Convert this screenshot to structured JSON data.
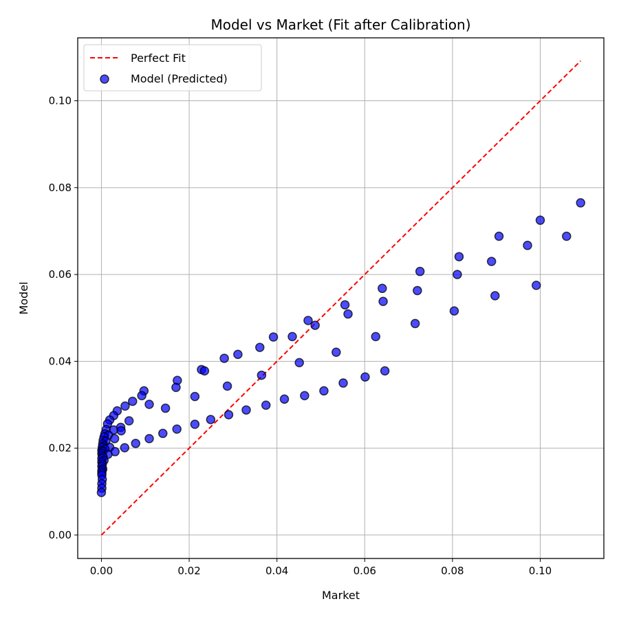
{
  "chart_data": {
    "type": "scatter",
    "title": "Model vs Market (Fit after Calibration)",
    "xlabel": "Market",
    "ylabel": "Model",
    "xlim": [
      -0.0054,
      0.1145
    ],
    "ylim": [
      -0.0054,
      0.1145
    ],
    "xticks": [
      "0.00",
      "0.02",
      "0.04",
      "0.06",
      "0.08",
      "0.10"
    ],
    "xtick_values": [
      0.0,
      0.02,
      0.04,
      0.06,
      0.08,
      0.1
    ],
    "yticks": [
      "0.00",
      "0.02",
      "0.04",
      "0.06",
      "0.08",
      "0.10"
    ],
    "ytick_values": [
      0.0,
      0.02,
      0.04,
      0.06,
      0.08,
      0.1
    ],
    "grid": true,
    "legend_position": "top-left",
    "series": [
      {
        "name": "Perfect Fit",
        "kind": "line",
        "style": "dashed",
        "color": "#ff0000",
        "x": [
          0.0,
          0.1092
        ],
        "y": [
          0.0,
          0.1092
        ]
      },
      {
        "name": "Model (Predicted)",
        "kind": "scatter",
        "color": "#0000ff",
        "edge_color": "#000000",
        "points": [
          [
            0.1092,
            0.0765
          ],
          [
            0.1,
            0.0725
          ],
          [
            0.0906,
            0.0688
          ],
          [
            0.0971,
            0.0667
          ],
          [
            0.106,
            0.0688
          ],
          [
            0.0815,
            0.0641
          ],
          [
            0.0726,
            0.0607
          ],
          [
            0.0889,
            0.063
          ],
          [
            0.0811,
            0.06
          ],
          [
            0.0991,
            0.0575
          ],
          [
            0.064,
            0.0568
          ],
          [
            0.072,
            0.0563
          ],
          [
            0.0897,
            0.0551
          ],
          [
            0.0642,
            0.0538
          ],
          [
            0.0555,
            0.053
          ],
          [
            0.0562,
            0.0509
          ],
          [
            0.0804,
            0.0516
          ],
          [
            0.0715,
            0.0487
          ],
          [
            0.0471,
            0.0494
          ],
          [
            0.0487,
            0.0483
          ],
          [
            0.0625,
            0.0457
          ],
          [
            0.0435,
            0.0457
          ],
          [
            0.0392,
            0.0456
          ],
          [
            0.0361,
            0.0432
          ],
          [
            0.0535,
            0.0421
          ],
          [
            0.0311,
            0.0416
          ],
          [
            0.028,
            0.0407
          ],
          [
            0.0451,
            0.0397
          ],
          [
            0.0228,
            0.0381
          ],
          [
            0.0235,
            0.0378
          ],
          [
            0.0646,
            0.0378
          ],
          [
            0.0365,
            0.0368
          ],
          [
            0.0601,
            0.0364
          ],
          [
            0.0173,
            0.0356
          ],
          [
            0.0551,
            0.035
          ],
          [
            0.0287,
            0.0343
          ],
          [
            0.017,
            0.034
          ],
          [
            0.0097,
            0.0332
          ],
          [
            0.0507,
            0.0332
          ],
          [
            0.0463,
            0.0321
          ],
          [
            0.0092,
            0.0321
          ],
          [
            0.0213,
            0.0319
          ],
          [
            0.0417,
            0.0313
          ],
          [
            0.0071,
            0.0308
          ],
          [
            0.0109,
            0.0301
          ],
          [
            0.0375,
            0.0299
          ],
          [
            0.0054,
            0.0297
          ],
          [
            0.0146,
            0.0292
          ],
          [
            0.033,
            0.0288
          ],
          [
            0.0036,
            0.0286
          ],
          [
            0.029,
            0.0277
          ],
          [
            0.0028,
            0.0275
          ],
          [
            0.0249,
            0.0266
          ],
          [
            0.0019,
            0.0265
          ],
          [
            0.0063,
            0.0263
          ],
          [
            0.0014,
            0.0256
          ],
          [
            0.0213,
            0.0255
          ],
          [
            0.0044,
            0.0248
          ],
          [
            0.0172,
            0.0244
          ],
          [
            0.0011,
            0.0243
          ],
          [
            0.0028,
            0.0242
          ],
          [
            0.0045,
            0.024
          ],
          [
            0.014,
            0.0234
          ],
          [
            0.0008,
            0.0233
          ],
          [
            0.0016,
            0.023
          ],
          [
            0.003,
            0.0222
          ],
          [
            0.0006,
            0.0226
          ],
          [
            0.0109,
            0.0222
          ],
          [
            0.0004,
            0.0218
          ],
          [
            0.001,
            0.0216
          ],
          [
            0.0078,
            0.0211
          ],
          [
            0.0003,
            0.021
          ],
          [
            0.0005,
            0.0205
          ],
          [
            0.0019,
            0.0202
          ],
          [
            0.0053,
            0.0201
          ],
          [
            0.0002,
            0.0202
          ],
          [
            0.0008,
            0.0198
          ],
          [
            0.0001,
            0.0195
          ],
          [
            0.0003,
            0.0192
          ],
          [
            0.0031,
            0.0192
          ],
          [
            0.0001,
            0.0188
          ],
          [
            0.0015,
            0.0186
          ],
          [
            0.0002,
            0.0183
          ],
          [
            0.0004,
            0.0179
          ],
          [
            0.0001,
            0.0176
          ],
          [
            0.0006,
            0.0172
          ],
          [
            0.0001,
            0.0168
          ],
          [
            0.0002,
            0.0163
          ],
          [
            0.0001,
            0.0158
          ],
          [
            0.0003,
            0.0152
          ],
          [
            0.0001,
            0.0148
          ],
          [
            0.0001,
            0.0143
          ],
          [
            0.0001,
            0.0138
          ],
          [
            0.0002,
            0.0128
          ],
          [
            0.0001,
            0.0118
          ],
          [
            0.0001,
            0.0108
          ],
          [
            0.0,
            0.0098
          ]
        ]
      }
    ]
  }
}
